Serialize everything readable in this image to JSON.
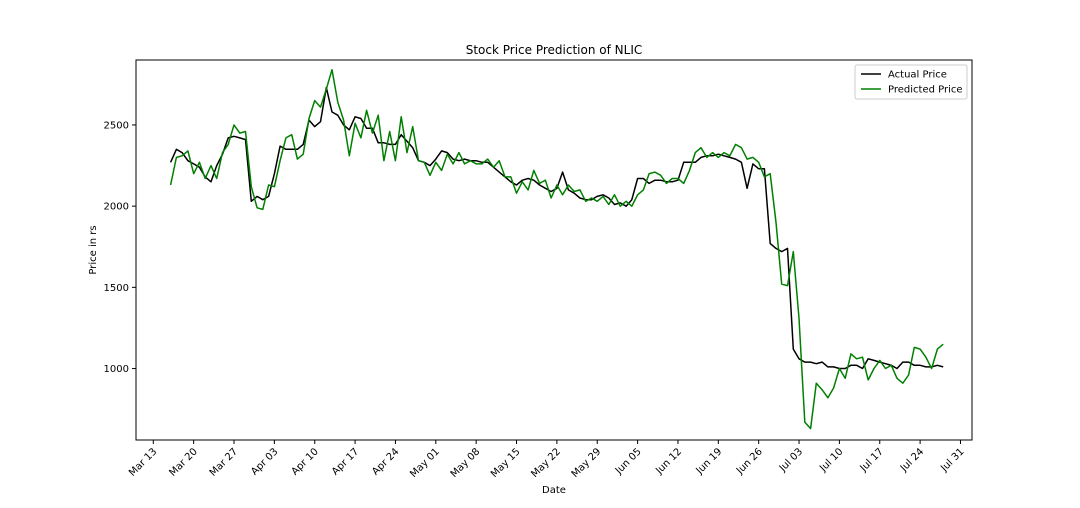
{
  "chart_data": {
    "type": "line",
    "title": "Stock Price Prediction of NLIC",
    "xlabel": "Date",
    "ylabel": "Price in rs",
    "x_ticks": [
      "Mar 13",
      "Mar 20",
      "Mar 27",
      "Apr 03",
      "Apr 10",
      "Apr 17",
      "Apr 24",
      "May 01",
      "May 08",
      "May 15",
      "May 22",
      "May 29",
      "Jun 05",
      "Jun 12",
      "Jun 19",
      "Jun 26",
      "Jul 03",
      "Jul 10",
      "Jul 17",
      "Jul 24",
      "Jul 31"
    ],
    "y_ticks": [
      1000,
      1500,
      2000,
      2500
    ],
    "xlim": [
      "2020-03-10",
      "2020-08-02"
    ],
    "ylim": [
      560,
      2900
    ],
    "grid": false,
    "legend": "top-right",
    "series": [
      {
        "name": "Actual Price",
        "color": "#000000",
        "points": [
          [
            "2020-03-16",
            2270
          ],
          [
            "2020-03-17",
            2350
          ],
          [
            "2020-03-18",
            2330
          ],
          [
            "2020-03-19",
            2280
          ],
          [
            "2020-03-20",
            2260
          ],
          [
            "2020-03-21",
            2240
          ],
          [
            "2020-03-22",
            2180
          ],
          [
            "2020-03-23",
            2150
          ],
          [
            "2020-03-24",
            2250
          ],
          [
            "2020-03-25",
            2320
          ],
          [
            "2020-03-26",
            2420
          ],
          [
            "2020-03-27",
            2430
          ],
          [
            "2020-03-28",
            2420
          ],
          [
            "2020-03-29",
            2410
          ],
          [
            "2020-03-30",
            2030
          ],
          [
            "2020-03-31",
            2060
          ],
          [
            "2020-04-01",
            2040
          ],
          [
            "2020-04-02",
            2060
          ],
          [
            "2020-04-03",
            2200
          ],
          [
            "2020-04-04",
            2370
          ],
          [
            "2020-04-05",
            2350
          ],
          [
            "2020-04-06",
            2350
          ],
          [
            "2020-04-07",
            2350
          ],
          [
            "2020-04-08",
            2380
          ],
          [
            "2020-04-09",
            2530
          ],
          [
            "2020-04-10",
            2490
          ],
          [
            "2020-04-11",
            2520
          ],
          [
            "2020-04-12",
            2730
          ],
          [
            "2020-04-13",
            2580
          ],
          [
            "2020-04-14",
            2560
          ],
          [
            "2020-04-15",
            2500
          ],
          [
            "2020-04-16",
            2470
          ],
          [
            "2020-04-17",
            2550
          ],
          [
            "2020-04-18",
            2540
          ],
          [
            "2020-04-19",
            2480
          ],
          [
            "2020-04-20",
            2480
          ],
          [
            "2020-04-21",
            2390
          ],
          [
            "2020-04-22",
            2390
          ],
          [
            "2020-04-23",
            2380
          ],
          [
            "2020-04-24",
            2380
          ],
          [
            "2020-04-25",
            2440
          ],
          [
            "2020-04-26",
            2400
          ],
          [
            "2020-04-27",
            2360
          ],
          [
            "2020-04-28",
            2280
          ],
          [
            "2020-04-29",
            2270
          ],
          [
            "2020-04-30",
            2250
          ],
          [
            "2020-05-01",
            2290
          ],
          [
            "2020-05-02",
            2340
          ],
          [
            "2020-05-03",
            2330
          ],
          [
            "2020-05-04",
            2290
          ],
          [
            "2020-05-05",
            2280
          ],
          [
            "2020-05-06",
            2290
          ],
          [
            "2020-05-07",
            2280
          ],
          [
            "2020-05-08",
            2280
          ],
          [
            "2020-05-09",
            2270
          ],
          [
            "2020-05-10",
            2270
          ],
          [
            "2020-05-11",
            2240
          ],
          [
            "2020-05-12",
            2210
          ],
          [
            "2020-05-13",
            2180
          ],
          [
            "2020-05-14",
            2150
          ],
          [
            "2020-05-15",
            2130
          ],
          [
            "2020-05-16",
            2160
          ],
          [
            "2020-05-17",
            2170
          ],
          [
            "2020-05-18",
            2160
          ],
          [
            "2020-05-19",
            2130
          ],
          [
            "2020-05-20",
            2110
          ],
          [
            "2020-05-21",
            2090
          ],
          [
            "2020-05-22",
            2110
          ],
          [
            "2020-05-23",
            2210
          ],
          [
            "2020-05-24",
            2100
          ],
          [
            "2020-05-25",
            2080
          ],
          [
            "2020-05-26",
            2050
          ],
          [
            "2020-05-27",
            2040
          ],
          [
            "2020-05-28",
            2040
          ],
          [
            "2020-05-29",
            2060
          ],
          [
            "2020-05-30",
            2070
          ],
          [
            "2020-05-31",
            2050
          ],
          [
            "2020-06-01",
            2010
          ],
          [
            "2020-06-02",
            2020
          ],
          [
            "2020-06-03",
            2000
          ],
          [
            "2020-06-04",
            2040
          ],
          [
            "2020-06-05",
            2170
          ],
          [
            "2020-06-06",
            2170
          ],
          [
            "2020-06-07",
            2140
          ],
          [
            "2020-06-08",
            2160
          ],
          [
            "2020-06-09",
            2160
          ],
          [
            "2020-06-10",
            2150
          ],
          [
            "2020-06-11",
            2150
          ],
          [
            "2020-06-12",
            2160
          ],
          [
            "2020-06-13",
            2270
          ],
          [
            "2020-06-14",
            2270
          ],
          [
            "2020-06-15",
            2270
          ],
          [
            "2020-06-16",
            2300
          ],
          [
            "2020-06-17",
            2310
          ],
          [
            "2020-06-18",
            2310
          ],
          [
            "2020-06-19",
            2320
          ],
          [
            "2020-06-20",
            2310
          ],
          [
            "2020-06-21",
            2300
          ],
          [
            "2020-06-22",
            2290
          ],
          [
            "2020-06-23",
            2270
          ],
          [
            "2020-06-24",
            2110
          ],
          [
            "2020-06-25",
            2260
          ],
          [
            "2020-06-26",
            2230
          ],
          [
            "2020-06-27",
            2230
          ],
          [
            "2020-06-28",
            1770
          ],
          [
            "2020-06-29",
            1740
          ],
          [
            "2020-06-30",
            1720
          ],
          [
            "2020-07-01",
            1740
          ],
          [
            "2020-07-02",
            1120
          ],
          [
            "2020-07-03",
            1060
          ],
          [
            "2020-07-04",
            1040
          ],
          [
            "2020-07-05",
            1040
          ],
          [
            "2020-07-06",
            1030
          ],
          [
            "2020-07-07",
            1040
          ],
          [
            "2020-07-08",
            1010
          ],
          [
            "2020-07-09",
            1010
          ],
          [
            "2020-07-10",
            1000
          ],
          [
            "2020-07-11",
            1000
          ],
          [
            "2020-07-12",
            1020
          ],
          [
            "2020-07-13",
            1020
          ],
          [
            "2020-07-14",
            1000
          ],
          [
            "2020-07-15",
            1060
          ],
          [
            "2020-07-16",
            1050
          ],
          [
            "2020-07-17",
            1040
          ],
          [
            "2020-07-18",
            1030
          ],
          [
            "2020-07-19",
            1020
          ],
          [
            "2020-07-20",
            1000
          ],
          [
            "2020-07-21",
            1040
          ],
          [
            "2020-07-22",
            1040
          ],
          [
            "2020-07-23",
            1020
          ],
          [
            "2020-07-24",
            1020
          ],
          [
            "2020-07-25",
            1010
          ],
          [
            "2020-07-26",
            1010
          ],
          [
            "2020-07-27",
            1020
          ],
          [
            "2020-07-28",
            1010
          ]
        ]
      },
      {
        "name": "Predicted Price",
        "color": "#008000",
        "points": [
          [
            "2020-03-16",
            2130
          ],
          [
            "2020-03-17",
            2300
          ],
          [
            "2020-03-18",
            2310
          ],
          [
            "2020-03-19",
            2340
          ],
          [
            "2020-03-20",
            2200
          ],
          [
            "2020-03-21",
            2270
          ],
          [
            "2020-03-22",
            2170
          ],
          [
            "2020-03-23",
            2250
          ],
          [
            "2020-03-24",
            2170
          ],
          [
            "2020-03-25",
            2330
          ],
          [
            "2020-03-26",
            2380
          ],
          [
            "2020-03-27",
            2500
          ],
          [
            "2020-03-28",
            2450
          ],
          [
            "2020-03-29",
            2460
          ],
          [
            "2020-03-30",
            2120
          ],
          [
            "2020-03-31",
            1990
          ],
          [
            "2020-04-01",
            1980
          ],
          [
            "2020-04-02",
            2130
          ],
          [
            "2020-04-03",
            2120
          ],
          [
            "2020-04-04",
            2280
          ],
          [
            "2020-04-05",
            2420
          ],
          [
            "2020-04-06",
            2440
          ],
          [
            "2020-04-07",
            2290
          ],
          [
            "2020-04-08",
            2320
          ],
          [
            "2020-04-09",
            2540
          ],
          [
            "2020-04-10",
            2650
          ],
          [
            "2020-04-11",
            2610
          ],
          [
            "2020-04-12",
            2720
          ],
          [
            "2020-04-13",
            2840
          ],
          [
            "2020-04-14",
            2640
          ],
          [
            "2020-04-15",
            2530
          ],
          [
            "2020-04-16",
            2310
          ],
          [
            "2020-04-17",
            2510
          ],
          [
            "2020-04-18",
            2420
          ],
          [
            "2020-04-19",
            2590
          ],
          [
            "2020-04-20",
            2450
          ],
          [
            "2020-04-21",
            2560
          ],
          [
            "2020-04-22",
            2280
          ],
          [
            "2020-04-23",
            2460
          ],
          [
            "2020-04-24",
            2280
          ],
          [
            "2020-04-25",
            2550
          ],
          [
            "2020-04-26",
            2330
          ],
          [
            "2020-04-27",
            2490
          ],
          [
            "2020-04-28",
            2280
          ],
          [
            "2020-04-29",
            2270
          ],
          [
            "2020-04-30",
            2190
          ],
          [
            "2020-05-01",
            2270
          ],
          [
            "2020-05-02",
            2220
          ],
          [
            "2020-05-03",
            2320
          ],
          [
            "2020-05-04",
            2260
          ],
          [
            "2020-05-05",
            2330
          ],
          [
            "2020-05-06",
            2260
          ],
          [
            "2020-05-07",
            2280
          ],
          [
            "2020-05-08",
            2260
          ],
          [
            "2020-05-09",
            2260
          ],
          [
            "2020-05-10",
            2290
          ],
          [
            "2020-05-11",
            2240
          ],
          [
            "2020-05-12",
            2280
          ],
          [
            "2020-05-13",
            2180
          ],
          [
            "2020-05-14",
            2180
          ],
          [
            "2020-05-15",
            2080
          ],
          [
            "2020-05-16",
            2150
          ],
          [
            "2020-05-17",
            2100
          ],
          [
            "2020-05-18",
            2220
          ],
          [
            "2020-05-19",
            2140
          ],
          [
            "2020-05-20",
            2160
          ],
          [
            "2020-05-21",
            2050
          ],
          [
            "2020-05-22",
            2130
          ],
          [
            "2020-05-23",
            2070
          ],
          [
            "2020-05-24",
            2130
          ],
          [
            "2020-05-25",
            2090
          ],
          [
            "2020-05-26",
            2100
          ],
          [
            "2020-05-27",
            2030
          ],
          [
            "2020-05-28",
            2050
          ],
          [
            "2020-05-29",
            2030
          ],
          [
            "2020-05-30",
            2060
          ],
          [
            "2020-05-31",
            2010
          ],
          [
            "2020-06-01",
            2070
          ],
          [
            "2020-06-02",
            2000
          ],
          [
            "2020-06-03",
            2030
          ],
          [
            "2020-06-04",
            2000
          ],
          [
            "2020-06-05",
            2070
          ],
          [
            "2020-06-06",
            2100
          ],
          [
            "2020-06-07",
            2200
          ],
          [
            "2020-06-08",
            2210
          ],
          [
            "2020-06-09",
            2190
          ],
          [
            "2020-06-10",
            2140
          ],
          [
            "2020-06-11",
            2170
          ],
          [
            "2020-06-12",
            2170
          ],
          [
            "2020-06-13",
            2140
          ],
          [
            "2020-06-14",
            2220
          ],
          [
            "2020-06-15",
            2330
          ],
          [
            "2020-06-16",
            2360
          ],
          [
            "2020-06-17",
            2300
          ],
          [
            "2020-06-18",
            2330
          ],
          [
            "2020-06-19",
            2300
          ],
          [
            "2020-06-20",
            2330
          ],
          [
            "2020-06-21",
            2310
          ],
          [
            "2020-06-22",
            2380
          ],
          [
            "2020-06-23",
            2360
          ],
          [
            "2020-06-24",
            2290
          ],
          [
            "2020-06-25",
            2300
          ],
          [
            "2020-06-26",
            2270
          ],
          [
            "2020-06-27",
            2180
          ],
          [
            "2020-06-28",
            2200
          ],
          [
            "2020-06-29",
            1900
          ],
          [
            "2020-06-30",
            1520
          ],
          [
            "2020-07-01",
            1510
          ],
          [
            "2020-07-02",
            1720
          ],
          [
            "2020-07-03",
            1310
          ],
          [
            "2020-07-04",
            670
          ],
          [
            "2020-07-05",
            630
          ],
          [
            "2020-07-06",
            910
          ],
          [
            "2020-07-07",
            870
          ],
          [
            "2020-07-08",
            820
          ],
          [
            "2020-07-09",
            880
          ],
          [
            "2020-07-10",
            1000
          ],
          [
            "2020-07-11",
            940
          ],
          [
            "2020-07-12",
            1090
          ],
          [
            "2020-07-13",
            1060
          ],
          [
            "2020-07-14",
            1070
          ],
          [
            "2020-07-15",
            930
          ],
          [
            "2020-07-16",
            1000
          ],
          [
            "2020-07-17",
            1050
          ],
          [
            "2020-07-18",
            1000
          ],
          [
            "2020-07-19",
            1020
          ],
          [
            "2020-07-20",
            940
          ],
          [
            "2020-07-21",
            910
          ],
          [
            "2020-07-22",
            960
          ],
          [
            "2020-07-23",
            1130
          ],
          [
            "2020-07-24",
            1120
          ],
          [
            "2020-07-25",
            1070
          ],
          [
            "2020-07-26",
            1000
          ],
          [
            "2020-07-27",
            1120
          ],
          [
            "2020-07-28",
            1150
          ]
        ]
      }
    ]
  }
}
